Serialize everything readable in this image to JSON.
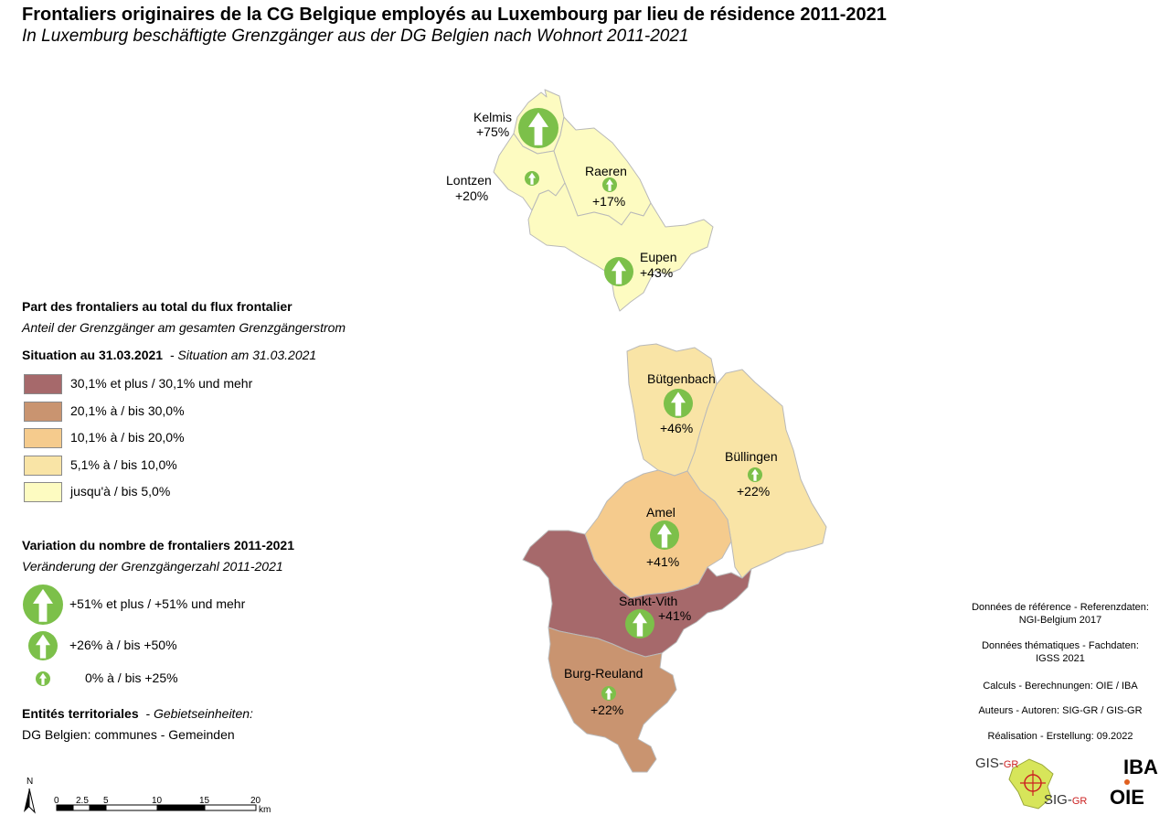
{
  "title": "Frontaliers originaires de la CG Belgique employés au Luxembourg par lieu de résidence 2011-2021",
  "subtitle": "In Luxemburg beschäftigte Grenzgänger aus der DG Belgien nach Wohnort 2011-2021",
  "colors": {
    "class1": "#a6696b",
    "class2": "#c99470",
    "class3": "#f5cb8d",
    "class4": "#f9e4a6",
    "class5": "#fdfbc1",
    "arrow_circle": "#7cc04a",
    "arrow_fill": "#ffffff",
    "border": "#b9b9b9"
  },
  "communes": [
    {
      "name": "Kelmis",
      "change": "+75%",
      "class": "class5",
      "arrow": "large"
    },
    {
      "name": "Lontzen",
      "change": "+20%",
      "class": "class5",
      "arrow": "small"
    },
    {
      "name": "Raeren",
      "change": "+17%",
      "class": "class5",
      "arrow": "small"
    },
    {
      "name": "Eupen",
      "change": "+43%",
      "class": "class5",
      "arrow": "medium"
    },
    {
      "name": "Bütgenbach",
      "change": "+46%",
      "class": "class4",
      "arrow": "medium"
    },
    {
      "name": "Büllingen",
      "change": "+22%",
      "class": "class4",
      "arrow": "small"
    },
    {
      "name": "Amel",
      "change": "+41%",
      "class": "class3",
      "arrow": "medium"
    },
    {
      "name": "Sankt-Vith",
      "change": "+41%",
      "class": "class1",
      "arrow": "medium"
    },
    {
      "name": "Burg-Reuland",
      "change": "+22%",
      "class": "class2",
      "arrow": "small"
    }
  ],
  "legend": {
    "share_head": "Part des frontaliers au total du flux frontalier",
    "share_sub": "Anteil der Grenzgänger am gesamten Grenzgängerstrom",
    "situation_fr": "Situation au 31.03.2021",
    "situation_de": "- Situation am 31.03.2021",
    "classes": [
      {
        "label": "30,1% et plus / 30,1% und mehr",
        "color": "#a6696b"
      },
      {
        "label": "20,1% à / bis 30,0%",
        "color": "#c99470"
      },
      {
        "label": "10,1% à / bis 20,0%",
        "color": "#f5cb8d"
      },
      {
        "label": "5,1% à / bis 10,0%",
        "color": "#f9e4a6"
      },
      {
        "label": "jusqu'à / bis 5,0%",
        "color": "#fdfbc1"
      }
    ],
    "variation_head": "Variation du nombre de frontaliers 2011-2021",
    "variation_sub": "Veränderung der Grenzgängerzahl 2011-2021",
    "arrows": [
      {
        "label": "+51% et plus / +51% und mehr",
        "size": "large"
      },
      {
        "label": "+26% à / bis +50%",
        "size": "medium"
      },
      {
        "label": "0% à / bis +25%",
        "size": "small"
      }
    ],
    "entities_fr": "Entités territoriales",
    "entities_de": "- Gebietseinheiten:",
    "entities_desc": "DG Belgien: communes - Gemeinden"
  },
  "scale": {
    "north": "N",
    "ticks": [
      "0",
      "2.5",
      "5",
      "10",
      "15",
      "20"
    ],
    "unit": "km"
  },
  "credits": [
    {
      "line1": "Données de référence - Referenzdaten:",
      "line2": "NGI-Belgium 2017"
    },
    {
      "line1": "Données thématiques - Fachdaten:",
      "line2": "IGSS 2021"
    },
    {
      "line1": "Calculs - Berechnungen: OIE / IBA",
      "line2": ""
    },
    {
      "line1": "Auteurs - Autoren: SIG-GR / GIS-GR",
      "line2": ""
    },
    {
      "line1": "Réalisation - Erstellung: 09.2022",
      "line2": ""
    }
  ],
  "logos": {
    "gis": "GIS-",
    "gis_suffix": "GR",
    "sig": "SIG-",
    "sig_suffix": "GR",
    "iba": "IBA",
    "oie": "OIE"
  }
}
